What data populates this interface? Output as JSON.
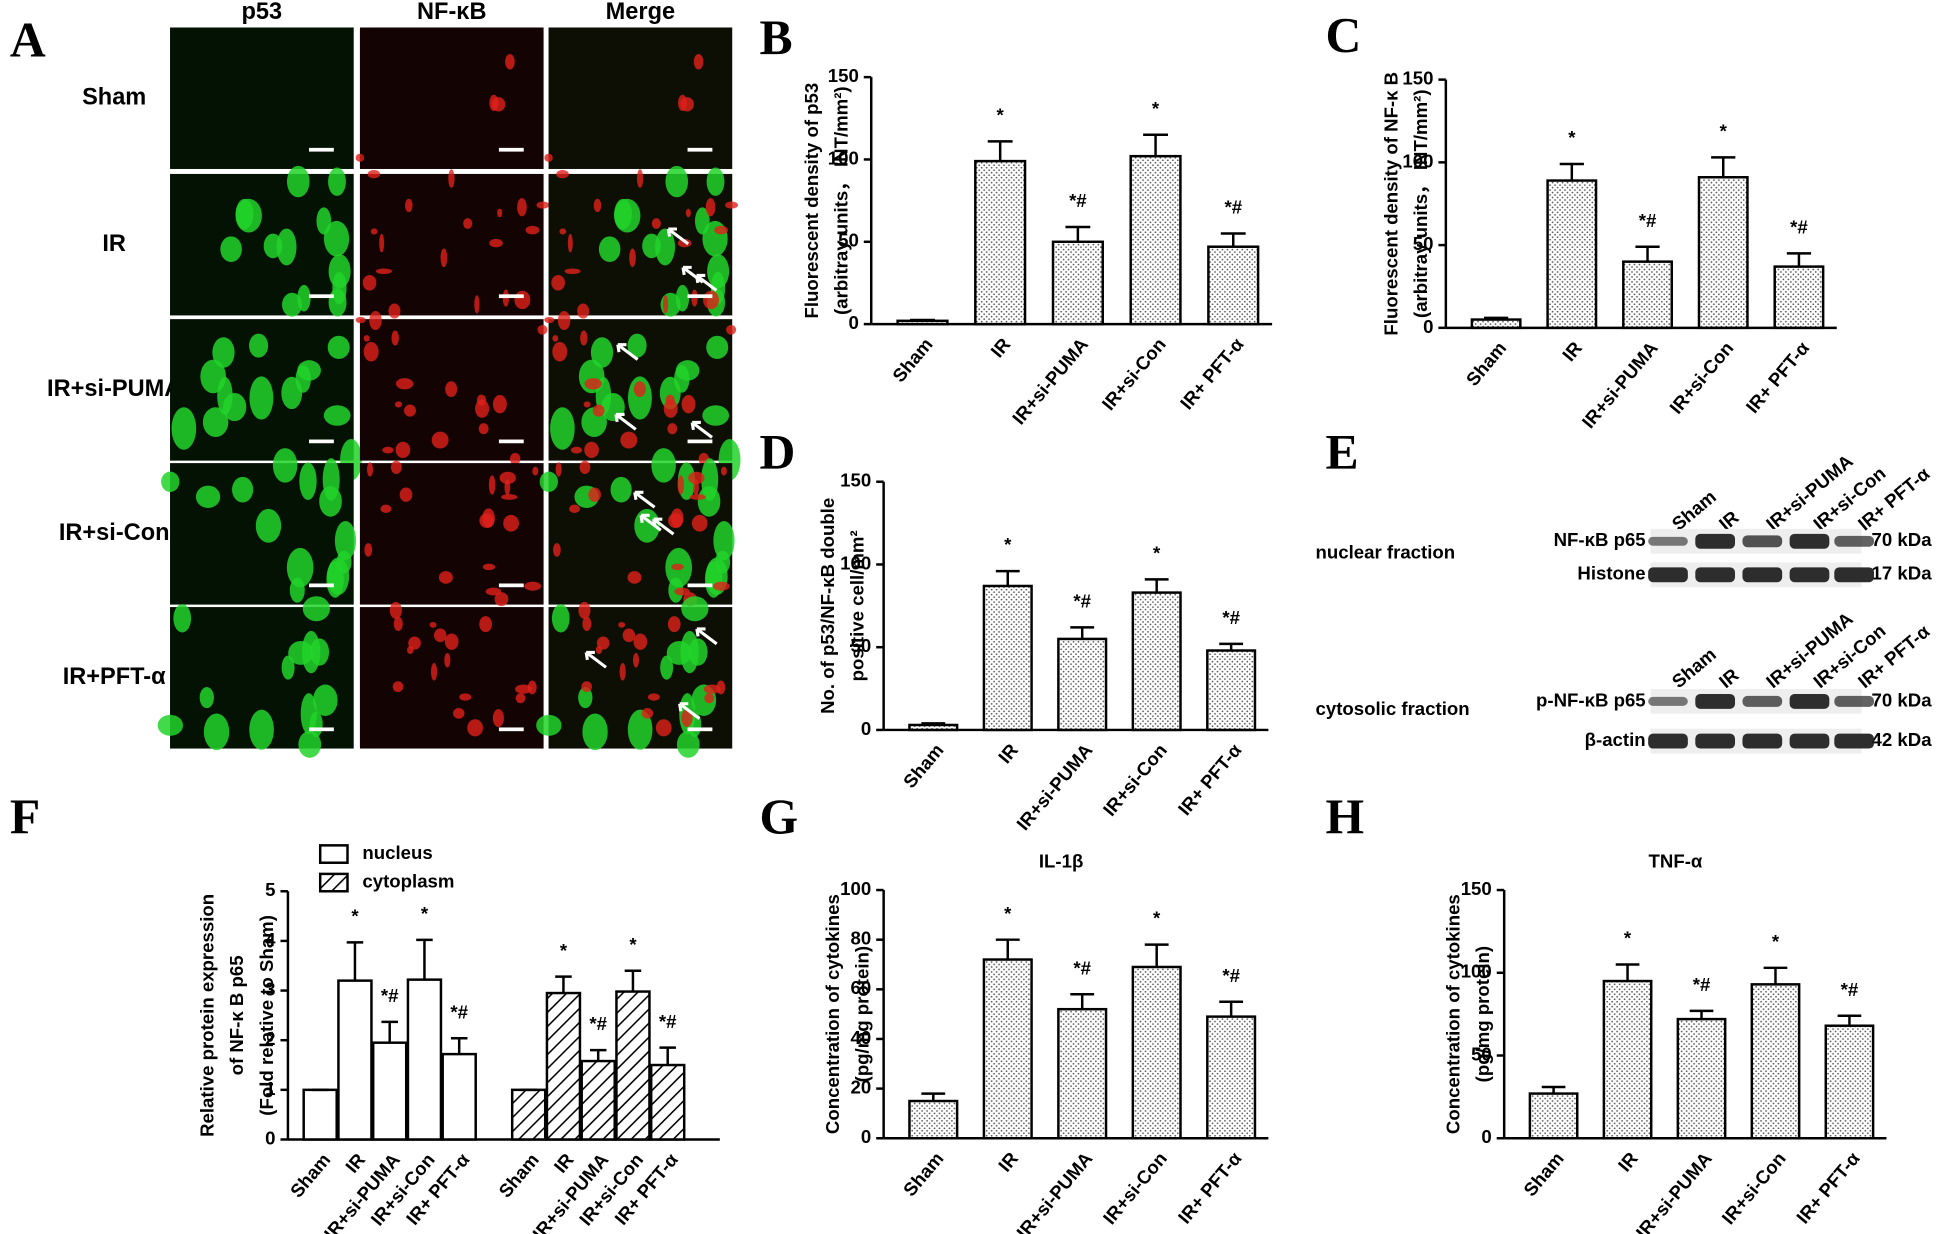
{
  "panel_a": {
    "panel": "A",
    "columns": [
      "p53",
      "NF-κB",
      "Merge"
    ],
    "rows": [
      "Sham",
      "IR",
      "IR+si-PUMA",
      "IR+si-Con",
      "IR+PFT-α"
    ]
  },
  "panel_e": {
    "panel": "E",
    "blots": [
      {
        "fraction": "nuclear fraction",
        "lanes": [
          "Sham",
          "IR",
          "IR+si-PUMA",
          "IR+si-Con",
          "IR+ PFT-α"
        ],
        "bands": [
          {
            "label": "NF-κB  p65",
            "size": "70 kDa"
          },
          {
            "label": "Histone",
            "size": "17 kDa"
          }
        ]
      },
      {
        "fraction": "cytosolic fraction",
        "lanes": [
          "Sham",
          "IR",
          "IR+si-PUMA",
          "IR+si-Con",
          "IR+ PFT-α"
        ],
        "bands": [
          {
            "label": "p-NF-κB p65",
            "size": "70 kDa"
          },
          {
            "label": "β-actin",
            "size": "42 kDa"
          }
        ]
      }
    ]
  },
  "chart_data": [
    {
      "type": "bar",
      "panel": "B",
      "ylabel": [
        "Fluorescent density of p53",
        "(arbitray units， INT/mm²)"
      ],
      "categories": [
        "Sham",
        "IR",
        "IR+si-PUMA",
        "IR+si-Con",
        "IR+ PFT-α"
      ],
      "values": [
        2,
        99,
        50,
        102,
        47
      ],
      "errors": [
        0.5,
        12,
        9,
        13,
        8
      ],
      "annotations": [
        null,
        "*",
        "*#",
        "*",
        "*#"
      ],
      "pattern": "dots",
      "ylim": [
        0,
        150
      ],
      "yticks": [
        0,
        50,
        100,
        150
      ]
    },
    {
      "type": "bar",
      "panel": "C",
      "ylabel": [
        "Fluorescent density of NF-κ B",
        "(arbitray units， INT/mm²)"
      ],
      "categories": [
        "Sham",
        "IR",
        "IR+si-PUMA",
        "IR+si-Con",
        "IR+ PFT-α"
      ],
      "values": [
        5,
        89,
        40,
        91,
        37
      ],
      "errors": [
        1,
        10,
        9,
        12,
        8
      ],
      "annotations": [
        null,
        "*",
        "*#",
        "*",
        "*#"
      ],
      "pattern": "dots",
      "ylim": [
        0,
        150
      ],
      "yticks": [
        0,
        50,
        100,
        150
      ]
    },
    {
      "type": "bar",
      "panel": "D",
      "ylabel": [
        "No. of p53/NF-κB double",
        "positive  cell/mm²"
      ],
      "categories": [
        "Sham",
        "IR",
        "IR+si-PUMA",
        "IR+si-Con",
        "IR+ PFT-α"
      ],
      "values": [
        3,
        87,
        55,
        83,
        48
      ],
      "errors": [
        1,
        9,
        7,
        8,
        4
      ],
      "annotations": [
        null,
        "*",
        "*#",
        "*",
        "*#"
      ],
      "pattern": "dots",
      "ylim": [
        0,
        150
      ],
      "yticks": [
        0,
        50,
        100,
        150
      ]
    },
    {
      "type": "grouped_bar",
      "panel": "F",
      "ylabel": [
        "Relative protein expression",
        "of NF-κ B p65",
        "(Fold relative to Sham)"
      ],
      "categories": [
        "Sham",
        "IR",
        "IR+si-PUMA",
        "IR+si-Con",
        "IR+ PFT-α"
      ],
      "series": [
        {
          "name": "nucleus",
          "pattern": "none",
          "values": [
            1,
            3.2,
            1.95,
            3.22,
            1.72
          ],
          "errors": [
            0,
            0.77,
            0.42,
            0.8,
            0.32
          ],
          "annotations": [
            null,
            "*",
            "*#",
            "*",
            "*#"
          ]
        },
        {
          "name": "cytoplasm",
          "pattern": "hatch",
          "values": [
            1,
            2.95,
            1.58,
            2.98,
            1.5
          ],
          "errors": [
            0,
            0.33,
            0.22,
            0.42,
            0.35
          ],
          "annotations": [
            null,
            "*",
            "*#",
            "*",
            "*#"
          ]
        }
      ],
      "ylim": [
        0,
        5
      ],
      "yticks": [
        0,
        1,
        2,
        3,
        4,
        5
      ]
    },
    {
      "type": "bar",
      "panel": "G",
      "title": "IL-1β",
      "ylabel": [
        "Concentration of cytokines",
        "(pg/mg protein)"
      ],
      "categories": [
        "Sham",
        "IR",
        "IR+si-PUMA",
        "IR+si-Con",
        "IR+ PFT-α"
      ],
      "values": [
        15,
        72,
        52,
        69,
        49
      ],
      "errors": [
        3,
        8,
        6,
        9,
        6
      ],
      "annotations": [
        null,
        "*",
        "*#",
        "*",
        "*#"
      ],
      "pattern": "dots",
      "ylim": [
        0,
        100
      ],
      "yticks": [
        0,
        20,
        40,
        60,
        80,
        100
      ]
    },
    {
      "type": "bar",
      "panel": "H",
      "title": "TNF-α",
      "ylabel": [
        "Concentration of cytokines",
        "(pg/mg protein)"
      ],
      "categories": [
        "Sham",
        "IR",
        "IR+si-PUMA",
        "IR+si-Con",
        "IR+ PFT-α"
      ],
      "values": [
        27,
        95,
        72,
        93,
        68
      ],
      "errors": [
        4,
        10,
        5,
        10,
        6
      ],
      "annotations": [
        null,
        "*",
        "*#",
        "*",
        "*#"
      ],
      "pattern": "dots",
      "ylim": [
        0,
        150
      ],
      "yticks": [
        0,
        50,
        100,
        150
      ]
    }
  ]
}
